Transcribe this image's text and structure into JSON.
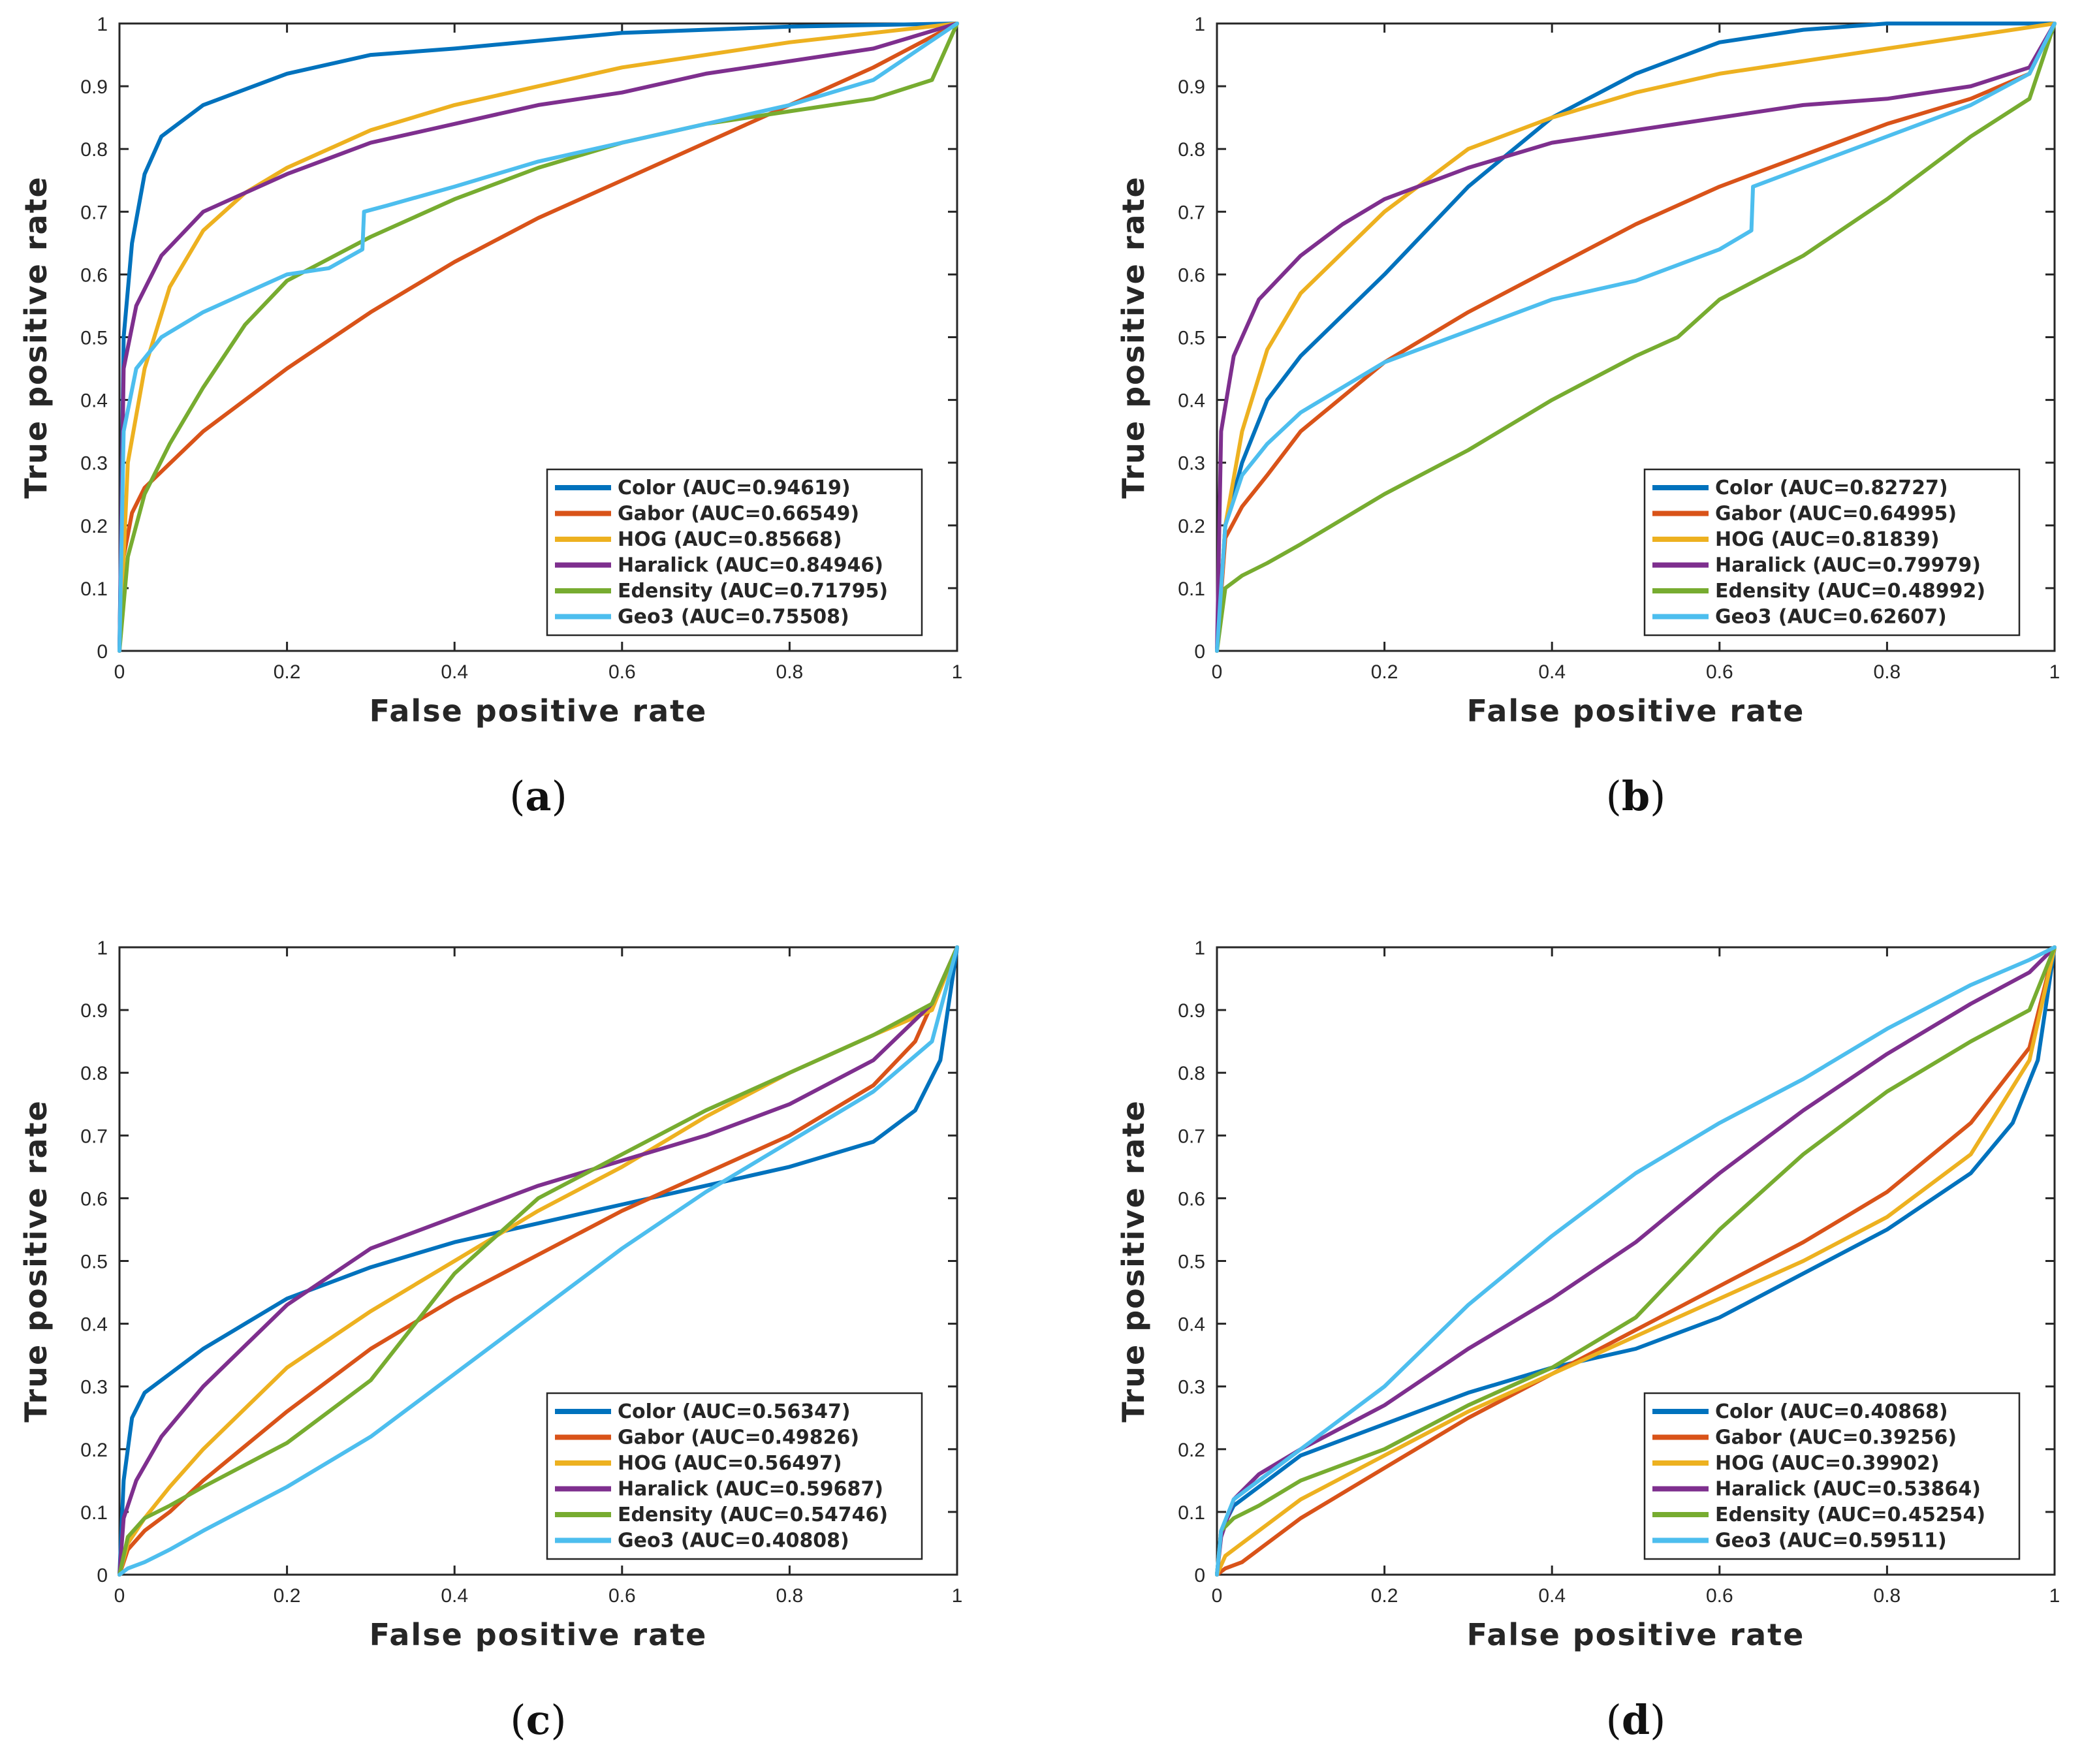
{
  "colors": {
    "Color": "#0072BD",
    "Gabor": "#D95319",
    "HOG": "#EDB120",
    "Haralick": "#7E2F8E",
    "Edensity": "#77AC30",
    "Geo3": "#4DBEEE"
  },
  "chart_data": [
    {
      "type": "line",
      "caption_prefix": "(",
      "caption_letter": "a",
      "caption_suffix": ")",
      "xlabel": "False positive rate",
      "ylabel": "True positive rate",
      "xlim": [
        0,
        1
      ],
      "ylim": [
        0,
        1
      ],
      "xticks": [
        "0",
        "0.2",
        "0.4",
        "0.6",
        "0.8",
        "1"
      ],
      "yticks": [
        "0",
        "0.1",
        "0.2",
        "0.3",
        "0.4",
        "0.5",
        "0.6",
        "0.7",
        "0.8",
        "0.9",
        "1"
      ],
      "legend_position": "bottom-right",
      "series": [
        {
          "name": "Color",
          "label": "Color (AUC=0.94619)",
          "x": [
            0,
            0.005,
            0.015,
            0.03,
            0.05,
            0.1,
            0.2,
            0.3,
            0.4,
            0.6,
            0.8,
            1
          ],
          "y": [
            0,
            0.5,
            0.65,
            0.76,
            0.82,
            0.87,
            0.92,
            0.95,
            0.96,
            0.985,
            0.995,
            1
          ]
        },
        {
          "name": "Gabor",
          "label": "Gabor (AUC=0.66549)",
          "x": [
            0,
            0.005,
            0.015,
            0.03,
            0.1,
            0.2,
            0.3,
            0.4,
            0.5,
            0.6,
            0.7,
            0.8,
            0.9,
            1
          ],
          "y": [
            0,
            0.15,
            0.22,
            0.26,
            0.35,
            0.45,
            0.54,
            0.62,
            0.69,
            0.75,
            0.81,
            0.87,
            0.93,
            1
          ]
        },
        {
          "name": "HOG",
          "label": "HOG (AUC=0.85668)",
          "x": [
            0,
            0.01,
            0.03,
            0.06,
            0.1,
            0.15,
            0.2,
            0.3,
            0.4,
            0.5,
            0.6,
            0.8,
            1
          ],
          "y": [
            0,
            0.3,
            0.45,
            0.58,
            0.67,
            0.73,
            0.77,
            0.83,
            0.87,
            0.9,
            0.93,
            0.97,
            1
          ]
        },
        {
          "name": "Haralick",
          "label": "Haralick (AUC=0.84946)",
          "x": [
            0,
            0.005,
            0.02,
            0.05,
            0.1,
            0.2,
            0.3,
            0.4,
            0.5,
            0.6,
            0.7,
            0.8,
            0.9,
            1
          ],
          "y": [
            0,
            0.45,
            0.55,
            0.63,
            0.7,
            0.76,
            0.81,
            0.84,
            0.87,
            0.89,
            0.92,
            0.94,
            0.96,
            1
          ]
        },
        {
          "name": "Edensity",
          "label": "Edensity (AUC=0.71795)",
          "x": [
            0,
            0.01,
            0.03,
            0.06,
            0.1,
            0.15,
            0.2,
            0.3,
            0.4,
            0.5,
            0.6,
            0.7,
            0.8,
            0.9,
            0.97,
            1
          ],
          "y": [
            0,
            0.15,
            0.25,
            0.33,
            0.42,
            0.52,
            0.59,
            0.66,
            0.72,
            0.77,
            0.81,
            0.84,
            0.86,
            0.88,
            0.91,
            1
          ]
        },
        {
          "name": "Geo3",
          "label": "Geo3 (AUC=0.75508)",
          "x": [
            0,
            0.005,
            0.02,
            0.05,
            0.1,
            0.15,
            0.2,
            0.25,
            0.29,
            0.292,
            0.32,
            0.4,
            0.5,
            0.6,
            0.7,
            0.8,
            0.9,
            1
          ],
          "y": [
            0,
            0.35,
            0.45,
            0.5,
            0.54,
            0.57,
            0.6,
            0.61,
            0.64,
            0.7,
            0.71,
            0.74,
            0.78,
            0.81,
            0.84,
            0.87,
            0.91,
            1
          ]
        }
      ]
    },
    {
      "type": "line",
      "caption_prefix": "(",
      "caption_letter": "b",
      "caption_suffix": ")",
      "xlabel": "False positive rate",
      "ylabel": "True positive rate",
      "xlim": [
        0,
        1
      ],
      "ylim": [
        0,
        1
      ],
      "xticks": [
        "0",
        "0.2",
        "0.4",
        "0.6",
        "0.8",
        "1"
      ],
      "yticks": [
        "0",
        "0.1",
        "0.2",
        "0.3",
        "0.4",
        "0.5",
        "0.6",
        "0.7",
        "0.8",
        "0.9",
        "1"
      ],
      "legend_position": "bottom-right",
      "series": [
        {
          "name": "Color",
          "label": "Color (AUC=0.82727)",
          "x": [
            0,
            0.01,
            0.03,
            0.06,
            0.1,
            0.2,
            0.3,
            0.4,
            0.5,
            0.6,
            0.7,
            0.8,
            1
          ],
          "y": [
            0,
            0.2,
            0.3,
            0.4,
            0.47,
            0.6,
            0.74,
            0.85,
            0.92,
            0.97,
            0.99,
            1,
            1
          ]
        },
        {
          "name": "Gabor",
          "label": "Gabor (AUC=0.64995)",
          "x": [
            0,
            0.01,
            0.03,
            0.06,
            0.1,
            0.2,
            0.3,
            0.4,
            0.5,
            0.6,
            0.7,
            0.8,
            0.9,
            0.97,
            1
          ],
          "y": [
            0,
            0.18,
            0.23,
            0.28,
            0.35,
            0.46,
            0.54,
            0.61,
            0.68,
            0.74,
            0.79,
            0.84,
            0.88,
            0.92,
            1
          ]
        },
        {
          "name": "HOG",
          "label": "HOG (AUC=0.81839)",
          "x": [
            0,
            0.01,
            0.03,
            0.06,
            0.1,
            0.2,
            0.3,
            0.4,
            0.5,
            0.6,
            0.8,
            0.95,
            1
          ],
          "y": [
            0,
            0.2,
            0.35,
            0.48,
            0.57,
            0.7,
            0.8,
            0.85,
            0.89,
            0.92,
            0.96,
            0.99,
            1
          ]
        },
        {
          "name": "Haralick",
          "label": "Haralick (AUC=0.79979)",
          "x": [
            0,
            0.005,
            0.02,
            0.05,
            0.1,
            0.15,
            0.2,
            0.3,
            0.4,
            0.5,
            0.6,
            0.7,
            0.8,
            0.9,
            0.97,
            1
          ],
          "y": [
            0,
            0.35,
            0.47,
            0.56,
            0.63,
            0.68,
            0.72,
            0.77,
            0.81,
            0.83,
            0.85,
            0.87,
            0.88,
            0.9,
            0.93,
            1
          ]
        },
        {
          "name": "Edensity",
          "label": "Edensity (AUC=0.48992)",
          "x": [
            0,
            0.01,
            0.03,
            0.06,
            0.1,
            0.2,
            0.3,
            0.4,
            0.5,
            0.55,
            0.6,
            0.7,
            0.8,
            0.9,
            0.97,
            1
          ],
          "y": [
            0,
            0.1,
            0.12,
            0.14,
            0.17,
            0.25,
            0.32,
            0.4,
            0.47,
            0.5,
            0.56,
            0.63,
            0.72,
            0.82,
            0.88,
            1
          ]
        },
        {
          "name": "Geo3",
          "label": "Geo3 (AUC=0.62607)",
          "x": [
            0,
            0.01,
            0.03,
            0.06,
            0.1,
            0.2,
            0.3,
            0.4,
            0.5,
            0.6,
            0.638,
            0.64,
            0.7,
            0.8,
            0.9,
            0.97,
            1
          ],
          "y": [
            0,
            0.2,
            0.28,
            0.33,
            0.38,
            0.46,
            0.51,
            0.56,
            0.59,
            0.64,
            0.67,
            0.74,
            0.77,
            0.82,
            0.87,
            0.92,
            1
          ]
        }
      ]
    },
    {
      "type": "line",
      "caption_prefix": "(",
      "caption_letter": "c",
      "caption_suffix": ")",
      "xlabel": "False positive rate",
      "ylabel": "True positive rate",
      "xlim": [
        0,
        1
      ],
      "ylim": [
        0,
        1
      ],
      "xticks": [
        "0",
        "0.2",
        "0.4",
        "0.6",
        "0.8",
        "1"
      ],
      "yticks": [
        "0",
        "0.1",
        "0.2",
        "0.3",
        "0.4",
        "0.5",
        "0.6",
        "0.7",
        "0.8",
        "0.9",
        "1"
      ],
      "legend_position": "bottom-right",
      "series": [
        {
          "name": "Color",
          "label": "Color (AUC=0.56347)",
          "x": [
            0,
            0.005,
            0.015,
            0.03,
            0.06,
            0.1,
            0.2,
            0.3,
            0.4,
            0.5,
            0.6,
            0.7,
            0.8,
            0.9,
            0.95,
            0.98,
            1
          ],
          "y": [
            0,
            0.15,
            0.25,
            0.29,
            0.32,
            0.36,
            0.44,
            0.49,
            0.53,
            0.56,
            0.59,
            0.62,
            0.65,
            0.69,
            0.74,
            0.82,
            1
          ]
        },
        {
          "name": "Gabor",
          "label": "Gabor (AUC=0.49826)",
          "x": [
            0,
            0.01,
            0.03,
            0.06,
            0.1,
            0.2,
            0.3,
            0.4,
            0.5,
            0.6,
            0.7,
            0.8,
            0.9,
            0.95,
            1
          ],
          "y": [
            0,
            0.04,
            0.07,
            0.1,
            0.15,
            0.26,
            0.36,
            0.44,
            0.51,
            0.58,
            0.64,
            0.7,
            0.78,
            0.85,
            1
          ]
        },
        {
          "name": "HOG",
          "label": "HOG (AUC=0.56497)",
          "x": [
            0,
            0.01,
            0.03,
            0.06,
            0.1,
            0.2,
            0.3,
            0.4,
            0.5,
            0.6,
            0.7,
            0.8,
            0.9,
            0.97,
            1
          ],
          "y": [
            0,
            0.05,
            0.09,
            0.14,
            0.2,
            0.33,
            0.42,
            0.5,
            0.58,
            0.65,
            0.73,
            0.8,
            0.86,
            0.9,
            1
          ]
        },
        {
          "name": "Haralick",
          "label": "Haralick (AUC=0.59687)",
          "x": [
            0,
            0.005,
            0.02,
            0.05,
            0.1,
            0.2,
            0.3,
            0.4,
            0.5,
            0.6,
            0.7,
            0.8,
            0.9,
            0.97,
            1
          ],
          "y": [
            0,
            0.09,
            0.15,
            0.22,
            0.3,
            0.43,
            0.52,
            0.57,
            0.62,
            0.66,
            0.7,
            0.75,
            0.82,
            0.91,
            1
          ]
        },
        {
          "name": "Edensity",
          "label": "Edensity (AUC=0.54746)",
          "x": [
            0,
            0.01,
            0.03,
            0.06,
            0.1,
            0.2,
            0.3,
            0.4,
            0.5,
            0.6,
            0.7,
            0.8,
            0.9,
            0.97,
            1
          ],
          "y": [
            0,
            0.06,
            0.09,
            0.11,
            0.14,
            0.21,
            0.31,
            0.48,
            0.6,
            0.67,
            0.74,
            0.8,
            0.86,
            0.91,
            1
          ]
        },
        {
          "name": "Geo3",
          "label": "Geo3 (AUC=0.40808)",
          "x": [
            0,
            0.01,
            0.03,
            0.06,
            0.1,
            0.2,
            0.3,
            0.4,
            0.5,
            0.6,
            0.7,
            0.8,
            0.9,
            0.97,
            1
          ],
          "y": [
            0,
            0.01,
            0.02,
            0.04,
            0.07,
            0.14,
            0.22,
            0.32,
            0.42,
            0.52,
            0.61,
            0.69,
            0.77,
            0.85,
            1
          ]
        }
      ]
    },
    {
      "type": "line",
      "caption_prefix": "(",
      "caption_letter": "d",
      "caption_suffix": ")",
      "xlabel": "False positive rate",
      "ylabel": "True positive rate",
      "xlim": [
        0,
        1
      ],
      "ylim": [
        0,
        1
      ],
      "xticks": [
        "0",
        "0.2",
        "0.4",
        "0.6",
        "0.8",
        "1"
      ],
      "yticks": [
        "0",
        "0.1",
        "0.2",
        "0.3",
        "0.4",
        "0.5",
        "0.6",
        "0.7",
        "0.8",
        "0.9",
        "1"
      ],
      "legend_position": "bottom-right",
      "series": [
        {
          "name": "Color",
          "label": "Color (AUC=0.40868)",
          "x": [
            0,
            0.005,
            0.02,
            0.05,
            0.1,
            0.2,
            0.3,
            0.4,
            0.5,
            0.6,
            0.7,
            0.8,
            0.9,
            0.95,
            0.98,
            1
          ],
          "y": [
            0,
            0.07,
            0.11,
            0.14,
            0.19,
            0.24,
            0.29,
            0.33,
            0.36,
            0.41,
            0.48,
            0.55,
            0.64,
            0.72,
            0.82,
            1
          ]
        },
        {
          "name": "Gabor",
          "label": "Gabor (AUC=0.39256)",
          "x": [
            0,
            0.01,
            0.03,
            0.06,
            0.1,
            0.2,
            0.3,
            0.4,
            0.5,
            0.6,
            0.7,
            0.8,
            0.9,
            0.97,
            1
          ],
          "y": [
            0,
            0.01,
            0.02,
            0.05,
            0.09,
            0.17,
            0.25,
            0.32,
            0.39,
            0.46,
            0.53,
            0.61,
            0.72,
            0.84,
            1
          ]
        },
        {
          "name": "HOG",
          "label": "HOG (AUC=0.39902)",
          "x": [
            0,
            0.01,
            0.03,
            0.06,
            0.1,
            0.2,
            0.3,
            0.4,
            0.5,
            0.6,
            0.7,
            0.8,
            0.9,
            0.97,
            1
          ],
          "y": [
            0,
            0.03,
            0.05,
            0.08,
            0.12,
            0.19,
            0.26,
            0.32,
            0.38,
            0.44,
            0.5,
            0.57,
            0.67,
            0.82,
            1
          ]
        },
        {
          "name": "Haralick",
          "label": "Haralick (AUC=0.53864)",
          "x": [
            0,
            0.005,
            0.02,
            0.05,
            0.1,
            0.2,
            0.3,
            0.4,
            0.5,
            0.6,
            0.7,
            0.8,
            0.9,
            0.97,
            1
          ],
          "y": [
            0,
            0.06,
            0.12,
            0.16,
            0.2,
            0.27,
            0.36,
            0.44,
            0.53,
            0.64,
            0.74,
            0.83,
            0.91,
            0.96,
            1
          ]
        },
        {
          "name": "Edensity",
          "label": "Edensity (AUC=0.45254)",
          "x": [
            0,
            0.005,
            0.02,
            0.05,
            0.1,
            0.2,
            0.3,
            0.4,
            0.5,
            0.55,
            0.6,
            0.7,
            0.8,
            0.9,
            0.97,
            1
          ],
          "y": [
            0,
            0.07,
            0.09,
            0.11,
            0.15,
            0.2,
            0.27,
            0.33,
            0.41,
            0.48,
            0.55,
            0.67,
            0.77,
            0.85,
            0.9,
            1
          ]
        },
        {
          "name": "Geo3",
          "label": "Geo3 (AUC=0.59511)",
          "x": [
            0,
            0.005,
            0.02,
            0.05,
            0.1,
            0.2,
            0.3,
            0.4,
            0.5,
            0.6,
            0.7,
            0.8,
            0.9,
            0.97,
            1
          ],
          "y": [
            0,
            0.07,
            0.12,
            0.15,
            0.2,
            0.3,
            0.43,
            0.54,
            0.64,
            0.72,
            0.79,
            0.87,
            0.94,
            0.98,
            1
          ]
        }
      ]
    }
  ]
}
